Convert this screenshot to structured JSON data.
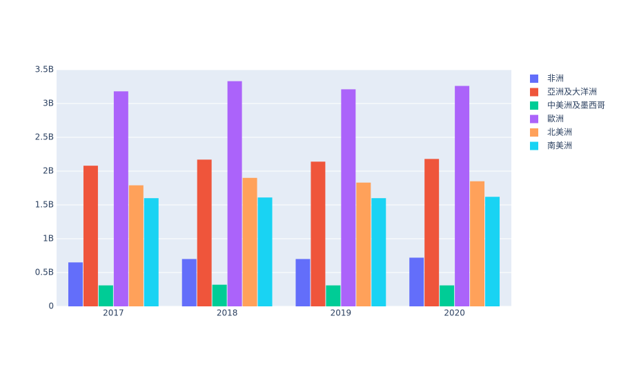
{
  "chart_data": {
    "type": "bar",
    "categories": [
      "2017",
      "2018",
      "2019",
      "2020"
    ],
    "series": [
      {
        "name": "非洲",
        "color": "#636efa",
        "values": [
          650000000,
          700000000,
          700000000,
          720000000
        ]
      },
      {
        "name": "亞洲及大洋洲",
        "color": "#EF553B",
        "values": [
          2080000000,
          2170000000,
          2140000000,
          2180000000
        ]
      },
      {
        "name": "中美洲及墨西哥",
        "color": "#00cc96",
        "values": [
          310000000,
          320000000,
          310000000,
          310000000
        ]
      },
      {
        "name": "歐洲",
        "color": "#ab63fa",
        "values": [
          3180000000,
          3330000000,
          3210000000,
          3260000000
        ]
      },
      {
        "name": "北美洲",
        "color": "#FFA15A",
        "values": [
          1790000000,
          1900000000,
          1830000000,
          1850000000
        ]
      },
      {
        "name": "南美洲",
        "color": "#19d3f3",
        "values": [
          1600000000,
          1610000000,
          1600000000,
          1620000000
        ]
      }
    ],
    "ylim": [
      0,
      3500000000
    ],
    "yticks": [
      0,
      {
        "value": 500000000,
        "label": "0.5B"
      },
      {
        "value": 1000000000,
        "label": "1B"
      },
      {
        "value": 1500000000,
        "label": "1.5B"
      },
      {
        "value": 2000000000,
        "label": "2B"
      },
      {
        "value": 2500000000,
        "label": "2.5B"
      },
      {
        "value": 3000000000,
        "label": "3B"
      },
      {
        "value": 3500000000,
        "label": "3.5B"
      }
    ],
    "grid": true,
    "legend": "right"
  }
}
